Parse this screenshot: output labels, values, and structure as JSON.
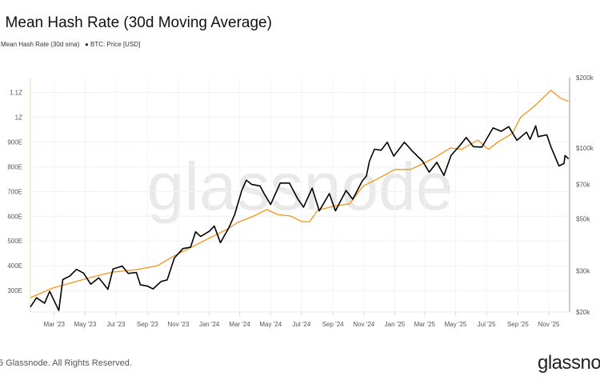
{
  "chart_data": {
    "type": "line",
    "title": ": Mean Hash Rate (30d Moving Average)",
    "legend": [
      {
        "label": "Mean Hash Rate (30d sma)",
        "color": "#f7931a"
      },
      {
        "label": "● BTC: Price [USD]",
        "color": "#000000"
      }
    ],
    "legend_placement": "top-left",
    "grid": true,
    "x_range": [
      "2023-01-13",
      "2025-12-12"
    ],
    "x_ticks": [
      "Mar '23",
      "May '23",
      "Jul '23",
      "Sep '23",
      "Nov '23",
      "Jan '24",
      "Mar '24",
      "May '24",
      "Jul '24",
      "Sep '24",
      "Nov '24",
      "Jan '25",
      "Mar '25",
      "May '25",
      "Jul '25",
      "Sep '25",
      "Nov '25"
    ],
    "x_tick_dates": [
      "2023-03-01",
      "2023-05-01",
      "2023-07-01",
      "2023-09-01",
      "2023-11-01",
      "2024-01-01",
      "2024-03-01",
      "2024-05-01",
      "2024-07-01",
      "2024-09-01",
      "2024-11-01",
      "2025-01-01",
      "2025-03-01",
      "2025-05-01",
      "2025-07-01",
      "2025-09-01",
      "2025-11-01"
    ],
    "y_left": {
      "scale": "linear",
      "unit": "EH/s",
      "range": [
        213,
        1160
      ],
      "ticks": [
        {
          "v": 300,
          "label": "300E"
        },
        {
          "v": 400,
          "label": "400E"
        },
        {
          "v": 500,
          "label": "500E"
        },
        {
          "v": 600,
          "label": "600E"
        },
        {
          "v": 700,
          "label": "700E"
        },
        {
          "v": 800,
          "label": "800E"
        },
        {
          "v": 900,
          "label": "900E"
        },
        {
          "v": 1000,
          "label": "1Z"
        },
        {
          "v": 1100,
          "label": "1.1Z"
        }
      ]
    },
    "y_right": {
      "scale": "log",
      "unit": "USD",
      "range": [
        20000,
        200000
      ],
      "ticks": [
        {
          "v": 20000,
          "label": "$20k"
        },
        {
          "v": 30000,
          "label": "$30k"
        },
        {
          "v": 50000,
          "label": "$50k"
        },
        {
          "v": 70000,
          "label": "$70k"
        },
        {
          "v": 100000,
          "label": "$100k"
        },
        {
          "v": 200000,
          "label": "$200k"
        }
      ]
    },
    "series": [
      {
        "name": "Mean Hash Rate (30d sma)",
        "axis": "left",
        "color": "#f7931a",
        "points": [
          [
            "2023-01-13",
            271
          ],
          [
            "2023-02-26",
            310
          ],
          [
            "2023-05-11",
            352
          ],
          [
            "2023-06-23",
            374
          ],
          [
            "2023-08-10",
            384
          ],
          [
            "2023-09-21",
            400
          ],
          [
            "2023-10-23",
            439
          ],
          [
            "2023-12-03",
            481
          ],
          [
            "2024-01-03",
            514
          ],
          [
            "2024-02-04",
            546
          ],
          [
            "2024-02-26",
            575
          ],
          [
            "2024-03-29",
            601
          ],
          [
            "2024-04-23",
            627
          ],
          [
            "2024-05-15",
            607
          ],
          [
            "2024-06-09",
            601
          ],
          [
            "2024-07-02",
            578
          ],
          [
            "2024-07-17",
            578
          ],
          [
            "2024-08-02",
            624
          ],
          [
            "2024-09-07",
            643
          ],
          [
            "2024-10-04",
            650
          ],
          [
            "2024-10-30",
            721
          ],
          [
            "2024-11-30",
            753
          ],
          [
            "2025-01-01",
            789
          ],
          [
            "2025-02-01",
            789
          ],
          [
            "2025-02-24",
            811
          ],
          [
            "2025-03-21",
            837
          ],
          [
            "2025-04-21",
            876
          ],
          [
            "2025-05-13",
            870
          ],
          [
            "2025-06-14",
            908
          ],
          [
            "2025-07-05",
            870
          ],
          [
            "2025-07-25",
            902
          ],
          [
            "2025-08-21",
            934
          ],
          [
            "2025-09-06",
            999
          ],
          [
            "2025-10-03",
            1044
          ],
          [
            "2025-11-05",
            1109
          ],
          [
            "2025-11-24",
            1077
          ],
          [
            "2025-12-10",
            1064
          ]
        ]
      },
      {
        "name": "BTC: Price [USD]",
        "axis": "right",
        "color": "#000000",
        "points": [
          [
            "2023-01-13",
            21000
          ],
          [
            "2023-01-25",
            23000
          ],
          [
            "2023-02-10",
            21800
          ],
          [
            "2023-02-20",
            24500
          ],
          [
            "2023-03-10",
            20300
          ],
          [
            "2023-03-18",
            27500
          ],
          [
            "2023-04-01",
            28500
          ],
          [
            "2023-04-14",
            30400
          ],
          [
            "2023-04-28",
            29300
          ],
          [
            "2023-05-12",
            26300
          ],
          [
            "2023-05-28",
            28000
          ],
          [
            "2023-06-15",
            25000
          ],
          [
            "2023-06-25",
            30500
          ],
          [
            "2023-07-13",
            31400
          ],
          [
            "2023-07-25",
            29200
          ],
          [
            "2023-08-10",
            29500
          ],
          [
            "2023-08-18",
            26100
          ],
          [
            "2023-09-01",
            25800
          ],
          [
            "2023-09-12",
            25100
          ],
          [
            "2023-09-28",
            27000
          ],
          [
            "2023-10-10",
            27400
          ],
          [
            "2023-10-24",
            34000
          ],
          [
            "2023-11-10",
            37300
          ],
          [
            "2023-11-25",
            37800
          ],
          [
            "2023-12-05",
            44000
          ],
          [
            "2023-12-15",
            42000
          ],
          [
            "2024-01-01",
            44200
          ],
          [
            "2024-01-11",
            46500
          ],
          [
            "2024-01-23",
            39500
          ],
          [
            "2024-02-08",
            45500
          ],
          [
            "2024-02-20",
            52000
          ],
          [
            "2024-03-05",
            66000
          ],
          [
            "2024-03-14",
            73000
          ],
          [
            "2024-03-25",
            70000
          ],
          [
            "2024-04-10",
            69000
          ],
          [
            "2024-04-19",
            63500
          ],
          [
            "2024-05-01",
            57500
          ],
          [
            "2024-05-20",
            71000
          ],
          [
            "2024-06-07",
            71000
          ],
          [
            "2024-06-24",
            60500
          ],
          [
            "2024-07-05",
            56000
          ],
          [
            "2024-07-22",
            67500
          ],
          [
            "2024-08-05",
            54000
          ],
          [
            "2024-08-25",
            64000
          ],
          [
            "2024-09-06",
            54000
          ],
          [
            "2024-09-27",
            66000
          ],
          [
            "2024-10-10",
            60500
          ],
          [
            "2024-10-29",
            72500
          ],
          [
            "2024-11-06",
            76000
          ],
          [
            "2024-11-12",
            88000
          ],
          [
            "2024-11-22",
            99000
          ],
          [
            "2024-12-05",
            98000
          ],
          [
            "2024-12-17",
            106000
          ],
          [
            "2024-12-30",
            92500
          ],
          [
            "2025-01-20",
            106000
          ],
          [
            "2025-02-05",
            97000
          ],
          [
            "2025-02-25",
            88000
          ],
          [
            "2025-03-10",
            79000
          ],
          [
            "2025-03-25",
            87000
          ],
          [
            "2025-04-08",
            76500
          ],
          [
            "2025-04-22",
            93000
          ],
          [
            "2025-05-10",
            103000
          ],
          [
            "2025-05-22",
            111000
          ],
          [
            "2025-06-05",
            101500
          ],
          [
            "2025-06-22",
            101000
          ],
          [
            "2025-07-14",
            122000
          ],
          [
            "2025-07-30",
            118000
          ],
          [
            "2025-08-14",
            123500
          ],
          [
            "2025-08-30",
            108000
          ],
          [
            "2025-09-18",
            117000
          ],
          [
            "2025-09-25",
            109000
          ],
          [
            "2025-10-06",
            124500
          ],
          [
            "2025-10-11",
            112000
          ],
          [
            "2025-10-28",
            114000
          ],
          [
            "2025-11-05",
            101500
          ],
          [
            "2025-11-21",
            84000
          ],
          [
            "2025-12-01",
            86000
          ],
          [
            "2025-12-03",
            93000
          ],
          [
            "2025-12-10",
            90000
          ]
        ]
      }
    ],
    "watermark": "glassnode"
  },
  "footer": {
    "copyright": "5 Glassnode. All Rights Reserved.",
    "logo": "glassnode"
  }
}
